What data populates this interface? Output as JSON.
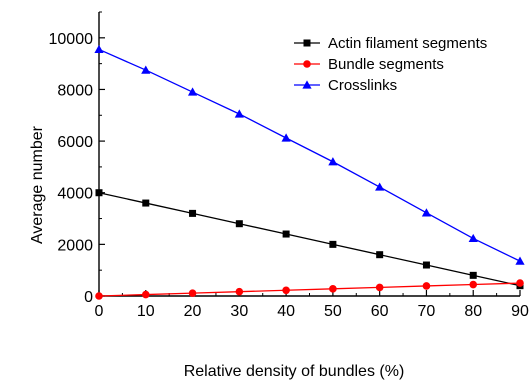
{
  "chart_data": {
    "type": "line",
    "xlabel": "Relative density of bundles (%)",
    "ylabel": "Average number",
    "xlim": [
      0,
      90
    ],
    "ylim": [
      0,
      11000
    ],
    "x_ticks": [
      0,
      10,
      20,
      30,
      40,
      50,
      60,
      70,
      80,
      90
    ],
    "y_ticks": [
      0,
      2000,
      4000,
      6000,
      8000,
      10000
    ],
    "grid": false,
    "legend_position": "top-right",
    "x": [
      0,
      10,
      20,
      30,
      40,
      50,
      60,
      70,
      80,
      90
    ],
    "series": [
      {
        "name": "Actin filament segments",
        "marker": "square",
        "color": "#000000",
        "values": [
          4000,
          3600,
          3200,
          2800,
          2400,
          2000,
          1600,
          1200,
          800,
          400
        ]
      },
      {
        "name": "Bundle segments",
        "marker": "circle",
        "color": "#ff0000",
        "values": [
          0,
          56,
          111,
          167,
          222,
          278,
          333,
          389,
          444,
          500
        ]
      },
      {
        "name": "Crosslinks",
        "marker": "triangle",
        "color": "#0000ff",
        "values": [
          9550,
          8750,
          7900,
          7050,
          6120,
          5200,
          4220,
          3220,
          2230,
          1350
        ]
      }
    ]
  }
}
